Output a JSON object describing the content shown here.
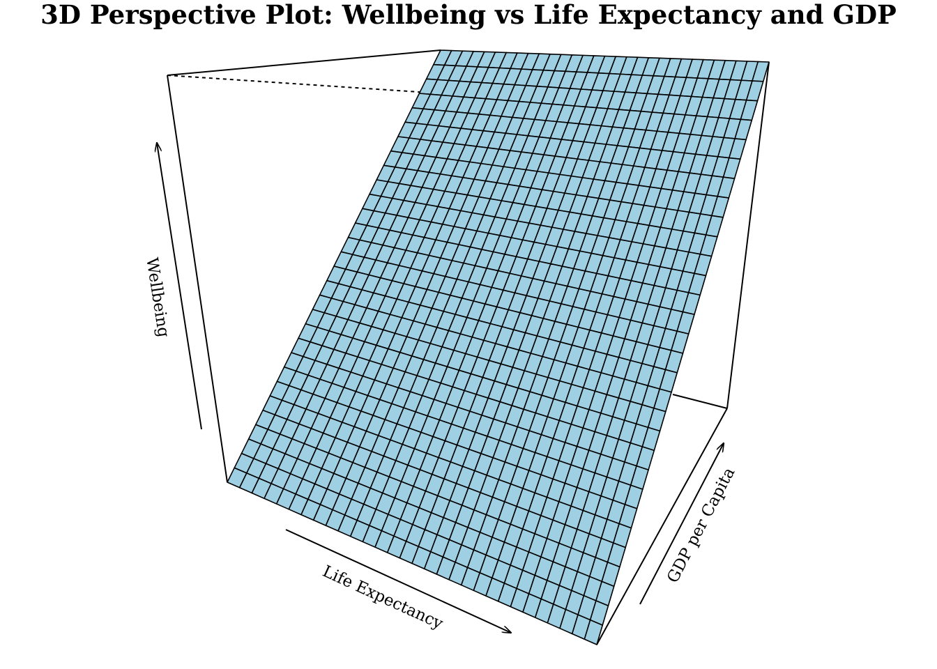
{
  "chart_data": {
    "type": "surface",
    "title": "3D Perspective Plot: Wellbeing vs Life Expectancy and GDP",
    "xlabel": "Life Expectancy",
    "ylabel": "GDP per Capita",
    "zlabel": "Wellbeing",
    "grid": {
      "rows": 30,
      "cols": 30
    },
    "surface": "planar (wellbeing increases with both life expectancy and GDP per capita)",
    "ticks": false,
    "colors": {
      "surface": "#9ecfe2",
      "lines": "#000000"
    }
  }
}
